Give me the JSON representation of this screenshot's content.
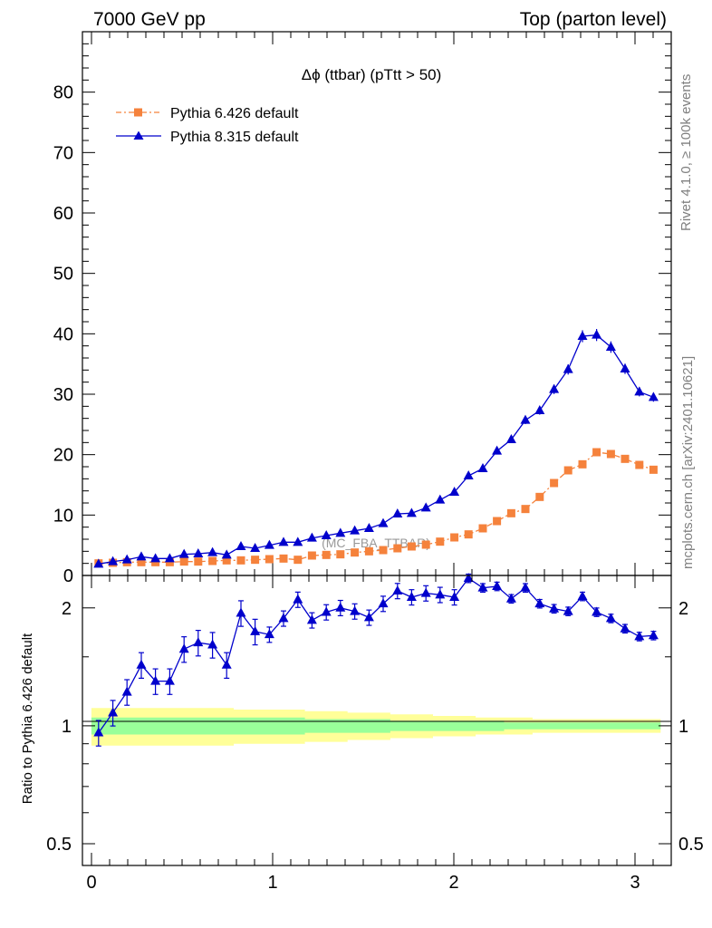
{
  "header": {
    "left_title": "7000 GeV pp",
    "right_title": "Top (parton level)"
  },
  "side_labels": {
    "rivet": "Rivet 4.1.0, ≥ 100k events",
    "mcplots": "mcplots.cern.ch [arXiv:2401.10621]"
  },
  "chart_data": {
    "type": "line",
    "title": "Δϕ (ttbar) (pTtt > 50)",
    "watermark": "(MC_FBA_TTBAR)",
    "xlabel": "",
    "ylabel": "",
    "xlim": [
      -0.05,
      3.2
    ],
    "ylim": [
      0,
      90
    ],
    "xticks": [
      {
        "v": 0,
        "label": "0"
      },
      {
        "v": 1,
        "label": "1"
      },
      {
        "v": 2,
        "label": "2"
      },
      {
        "v": 3,
        "label": "3"
      }
    ],
    "yticks": [
      {
        "v": 0,
        "label": "0"
      },
      {
        "v": 10,
        "label": "10"
      },
      {
        "v": 20,
        "label": "20"
      },
      {
        "v": 30,
        "label": "30"
      },
      {
        "v": 40,
        "label": "40"
      },
      {
        "v": 50,
        "label": "50"
      },
      {
        "v": 60,
        "label": "60"
      },
      {
        "v": 70,
        "label": "70"
      },
      {
        "v": 80,
        "label": "80"
      }
    ],
    "x": [
      0.039,
      0.118,
      0.196,
      0.275,
      0.353,
      0.432,
      0.511,
      0.589,
      0.668,
      0.746,
      0.825,
      0.903,
      0.982,
      1.06,
      1.139,
      1.217,
      1.296,
      1.374,
      1.453,
      1.532,
      1.61,
      1.689,
      1.767,
      1.846,
      1.924,
      2.003,
      2.081,
      2.16,
      2.238,
      2.317,
      2.395,
      2.474,
      2.553,
      2.631,
      2.71,
      2.788,
      2.867,
      2.945,
      3.024,
      3.102
    ],
    "series": [
      {
        "name": "Pythia 6.426 default",
        "color": "#f5823c",
        "marker": "square",
        "dash": "dashdot",
        "values": [
          2.0,
          2.1,
          2.2,
          2.2,
          2.2,
          2.2,
          2.3,
          2.3,
          2.4,
          2.5,
          2.5,
          2.6,
          2.7,
          2.8,
          2.6,
          3.3,
          3.4,
          3.5,
          3.8,
          4.0,
          4.2,
          4.5,
          4.8,
          5.1,
          5.6,
          6.3,
          6.8,
          7.8,
          9.0,
          10.3,
          11.0,
          13.0,
          15.3,
          17.4,
          18.4,
          20.4,
          20.1,
          19.3,
          18.3,
          17.5
        ]
      },
      {
        "name": "Pythia 8.315 default",
        "color": "#0000cc",
        "marker": "triangle",
        "dash": "solid",
        "values": [
          1.9,
          2.3,
          2.6,
          3.1,
          2.8,
          2.8,
          3.5,
          3.6,
          3.8,
          3.4,
          4.8,
          4.5,
          5.0,
          5.5,
          5.5,
          6.2,
          6.6,
          7.0,
          7.4,
          7.8,
          8.6,
          10.2,
          10.3,
          11.2,
          12.5,
          13.8,
          16.5,
          17.7,
          20.6,
          22.5,
          25.7,
          27.3,
          30.8,
          34.1,
          39.6,
          39.8,
          37.8,
          34.2,
          30.4,
          29.5
        ]
      }
    ],
    "ratio": {
      "ylabel": "Ratio to Pythia 6.426 default",
      "ytick_labels": [
        "2",
        "1",
        "0.5"
      ],
      "yticks": [
        2,
        1,
        0.5
      ],
      "values": [
        0.96,
        1.08,
        1.22,
        1.43,
        1.3,
        1.3,
        1.57,
        1.63,
        1.61,
        1.43,
        1.94,
        1.74,
        1.71,
        1.88,
        2.1,
        1.86,
        1.95,
        2.0,
        1.96,
        1.89,
        2.05,
        2.21,
        2.13,
        2.18,
        2.16,
        2.13,
        2.38,
        2.25,
        2.27,
        2.11,
        2.25,
        2.05,
        1.99,
        1.96,
        2.14,
        1.95,
        1.88,
        1.77,
        1.69,
        1.7
      ],
      "band_yellow_halfwidth": [
        0.11,
        0.11,
        0.11,
        0.11,
        0.11,
        0.11,
        0.11,
        0.11,
        0.11,
        0.11,
        0.1,
        0.1,
        0.1,
        0.1,
        0.1,
        0.09,
        0.09,
        0.09,
        0.08,
        0.08,
        0.08,
        0.07,
        0.07,
        0.07,
        0.06,
        0.06,
        0.06,
        0.05,
        0.05,
        0.05,
        0.05,
        0.04,
        0.04,
        0.04,
        0.04,
        0.04,
        0.04,
        0.04,
        0.04,
        0.04
      ],
      "band_green_halfwidth": [
        0.05,
        0.05,
        0.05,
        0.05,
        0.05,
        0.05,
        0.05,
        0.05,
        0.05,
        0.05,
        0.05,
        0.05,
        0.05,
        0.05,
        0.05,
        0.04,
        0.04,
        0.04,
        0.04,
        0.04,
        0.04,
        0.03,
        0.03,
        0.03,
        0.03,
        0.03,
        0.03,
        0.03,
        0.03,
        0.02,
        0.02,
        0.02,
        0.02,
        0.02,
        0.02,
        0.02,
        0.02,
        0.02,
        0.02,
        0.02
      ],
      "yellow": "#ffff99",
      "green": "#99ff99"
    }
  }
}
